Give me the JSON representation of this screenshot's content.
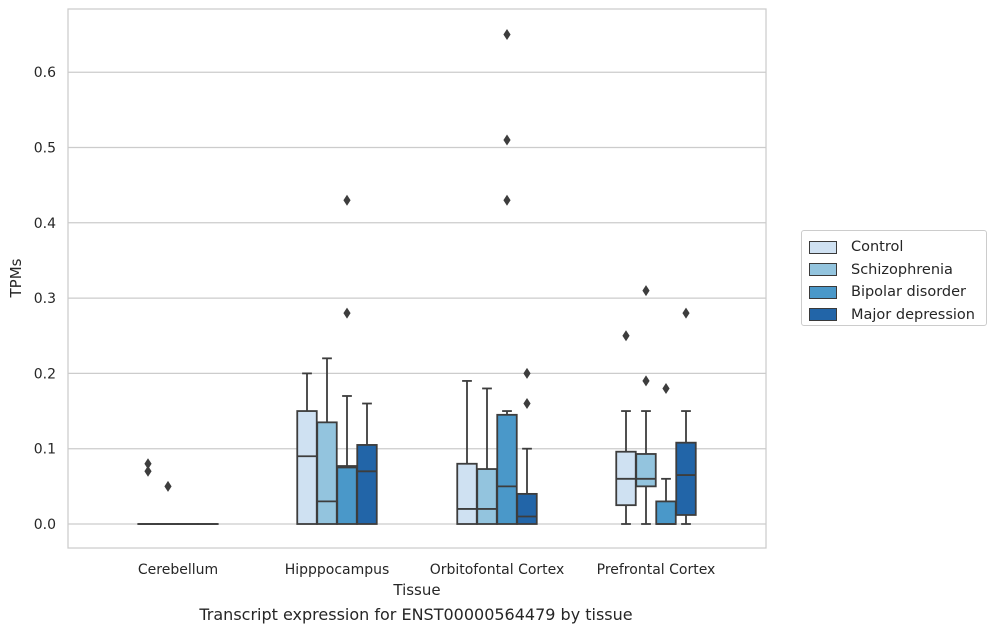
{
  "chart_data": {
    "type": "box",
    "title": "Transcript expression for ENST00000564479 by tissue",
    "xlabel": "Tissue",
    "ylabel": "TPMs",
    "ylim": [
      -0.032,
      0.687
    ],
    "yticks": [
      0.0,
      0.1,
      0.2,
      0.3,
      0.4,
      0.5,
      0.6
    ],
    "ytick_labels": [
      "0.0",
      "0.1",
      "0.2",
      "0.3",
      "0.4",
      "0.5",
      "0.6"
    ],
    "categories": [
      "Cerebellum",
      "Hipppocampus",
      "Orbitofontal Cortex",
      "Prefrontal Cortex"
    ],
    "grid": true,
    "legend_position": "right",
    "series": [
      {
        "name": "Control",
        "color": "#cfe1f2",
        "boxes": [
          {
            "q1": 0.0,
            "median": 0.0,
            "q3": 0.0,
            "whisker_low": 0.0,
            "whisker_high": 0.0,
            "outliers": [
              0.08,
              0.07
            ]
          },
          {
            "q1": 0.0,
            "median": 0.09,
            "q3": 0.15,
            "whisker_low": 0.0,
            "whisker_high": 0.2,
            "outliers": []
          },
          {
            "q1": 0.0,
            "median": 0.02,
            "q3": 0.08,
            "whisker_low": 0.0,
            "whisker_high": 0.19,
            "outliers": []
          },
          {
            "q1": 0.025,
            "median": 0.06,
            "q3": 0.096,
            "whisker_low": 0.0,
            "whisker_high": 0.15,
            "outliers": [
              0.25
            ]
          }
        ]
      },
      {
        "name": "Schizophrenia",
        "color": "#93c4de",
        "boxes": [
          {
            "q1": 0.0,
            "median": 0.0,
            "q3": 0.0,
            "whisker_low": 0.0,
            "whisker_high": 0.0,
            "outliers": [
              0.05
            ]
          },
          {
            "q1": 0.0,
            "median": 0.03,
            "q3": 0.135,
            "whisker_low": 0.0,
            "whisker_high": 0.22,
            "outliers": []
          },
          {
            "q1": 0.0,
            "median": 0.02,
            "q3": 0.073,
            "whisker_low": 0.0,
            "whisker_high": 0.18,
            "outliers": []
          },
          {
            "q1": 0.05,
            "median": 0.06,
            "q3": 0.093,
            "whisker_low": 0.0,
            "whisker_high": 0.15,
            "outliers": [
              0.31,
              0.19
            ]
          }
        ]
      },
      {
        "name": "Bipolar disorder",
        "color": "#4a98c9",
        "boxes": [
          {
            "q1": 0.0,
            "median": 0.0,
            "q3": 0.0,
            "whisker_low": 0.0,
            "whisker_high": 0.0,
            "outliers": []
          },
          {
            "q1": 0.0,
            "median": 0.075,
            "q3": 0.077,
            "whisker_low": 0.0,
            "whisker_high": 0.17,
            "outliers": [
              0.43,
              0.28
            ]
          },
          {
            "q1": 0.0,
            "median": 0.05,
            "q3": 0.145,
            "whisker_low": 0.0,
            "whisker_high": 0.15,
            "outliers": [
              0.65,
              0.51,
              0.43
            ]
          },
          {
            "q1": 0.0,
            "median": 0.0,
            "q3": 0.03,
            "whisker_low": 0.0,
            "whisker_high": 0.06,
            "outliers": [
              0.18
            ]
          }
        ]
      },
      {
        "name": "Major depression",
        "color": "#2265a8",
        "boxes": [
          {
            "q1": 0.0,
            "median": 0.0,
            "q3": 0.0,
            "whisker_low": 0.0,
            "whisker_high": 0.0,
            "outliers": []
          },
          {
            "q1": 0.0,
            "median": 0.07,
            "q3": 0.105,
            "whisker_low": 0.0,
            "whisker_high": 0.16,
            "outliers": []
          },
          {
            "q1": 0.0,
            "median": 0.01,
            "q3": 0.04,
            "whisker_low": 0.0,
            "whisker_high": 0.1,
            "outliers": [
              0.2,
              0.16
            ]
          },
          {
            "q1": 0.012,
            "median": 0.065,
            "q3": 0.108,
            "whisker_low": 0.0,
            "whisker_high": 0.15,
            "outliers": [
              0.28
            ]
          }
        ]
      }
    ]
  }
}
